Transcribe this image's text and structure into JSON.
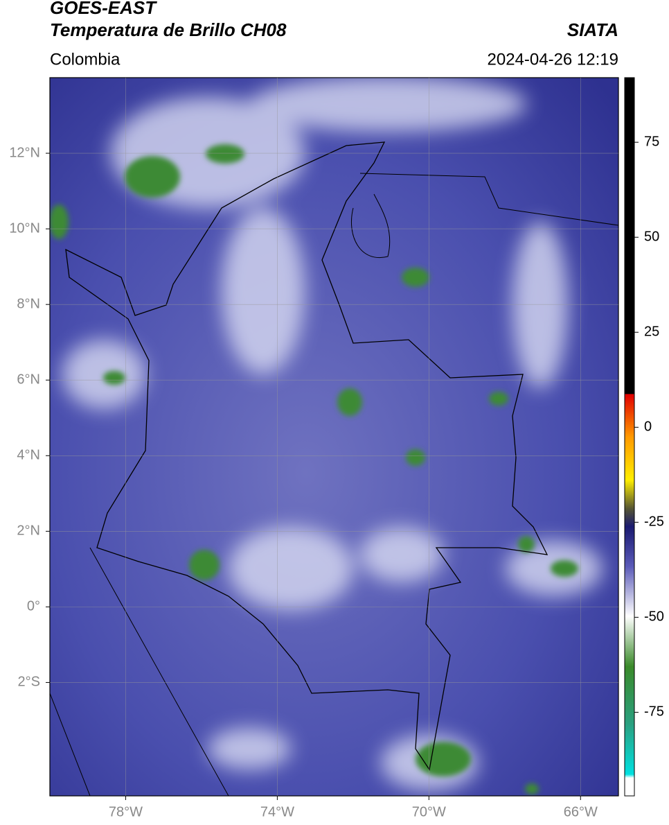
{
  "header": {
    "satellite": "GOES-EAST",
    "product": "Temperatura de Brillo CH08",
    "region": "Colombia",
    "source": "SIATA",
    "timestamp": "2024-04-26 12:19"
  },
  "map": {
    "xlim": [
      -80,
      -65
    ],
    "ylim": [
      -5,
      14
    ],
    "xticks": [
      {
        "value": -78,
        "label": "78°W"
      },
      {
        "value": -74,
        "label": "74°W"
      },
      {
        "value": -70,
        "label": "70°W"
      },
      {
        "value": -66,
        "label": "66°W"
      }
    ],
    "yticks": [
      {
        "value": 12,
        "label": "12°N"
      },
      {
        "value": 10,
        "label": "10°N"
      },
      {
        "value": 8,
        "label": "8°N"
      },
      {
        "value": 6,
        "label": "6°N"
      },
      {
        "value": 4,
        "label": "4°N"
      },
      {
        "value": 2,
        "label": "2°N"
      },
      {
        "value": 0,
        "label": "0°"
      },
      {
        "value": -2,
        "label": "2°S"
      }
    ],
    "grid": true
  },
  "colorbar": {
    "lim": [
      -97,
      92
    ],
    "ticks": [
      75,
      50,
      25,
      0,
      -25,
      -50,
      -75
    ]
  }
}
